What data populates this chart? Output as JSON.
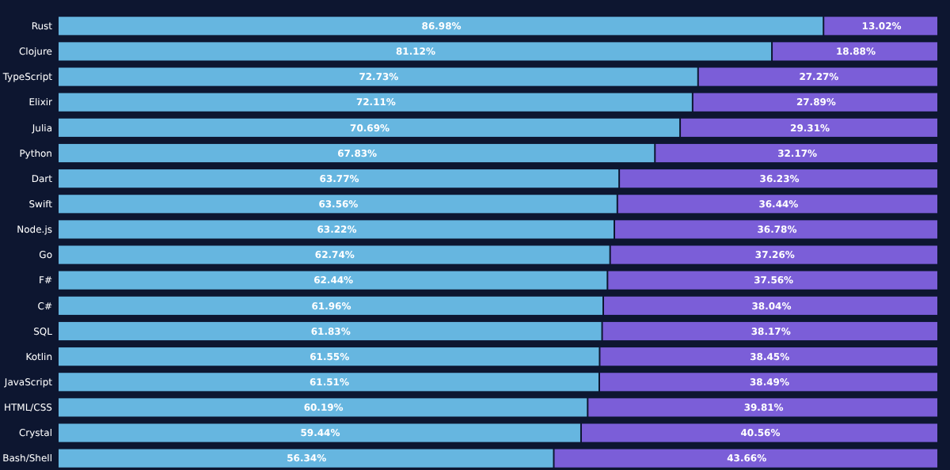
{
  "chart_data": {
    "type": "bar",
    "orientation": "horizontal",
    "stacked": true,
    "categories": [
      "Rust",
      "Clojure",
      "TypeScript",
      "Elixir",
      "Julia",
      "Python",
      "Dart",
      "Swift",
      "Node.js",
      "Go",
      "F#",
      "C#",
      "SQL",
      "Kotlin",
      "JavaScript",
      "HTML/CSS",
      "Crystal",
      "Bash/Shell"
    ],
    "xlim": [
      0,
      100
    ],
    "series": [
      {
        "color": "#66b6e0",
        "values": [
          86.98,
          81.12,
          72.73,
          72.11,
          70.69,
          67.83,
          63.77,
          63.56,
          63.22,
          62.74,
          62.44,
          61.96,
          61.83,
          61.55,
          61.51,
          60.19,
          59.44,
          56.34
        ],
        "value_labels": [
          "86.98%",
          "81.12%",
          "72.73%",
          "72.11%",
          "70.69%",
          "67.83%",
          "63.77%",
          "63.56%",
          "63.22%",
          "62.74%",
          "62.44%",
          "61.96%",
          "61.83%",
          "61.55%",
          "61.51%",
          "60.19%",
          "59.44%",
          "56.34%"
        ]
      },
      {
        "color": "#7b5ed8",
        "values": [
          13.02,
          18.88,
          27.27,
          27.89,
          29.31,
          32.17,
          36.23,
          36.44,
          36.78,
          37.26,
          37.56,
          38.04,
          38.17,
          38.45,
          38.49,
          39.81,
          40.56,
          43.66
        ],
        "value_labels": [
          "13.02%",
          "18.88%",
          "27.27%",
          "27.89%",
          "29.31%",
          "32.17%",
          "36.23%",
          "36.44%",
          "36.78%",
          "37.26%",
          "37.56%",
          "38.04%",
          "38.17%",
          "38.45%",
          "38.49%",
          "39.81%",
          "40.56%",
          "43.66%"
        ]
      }
    ]
  }
}
